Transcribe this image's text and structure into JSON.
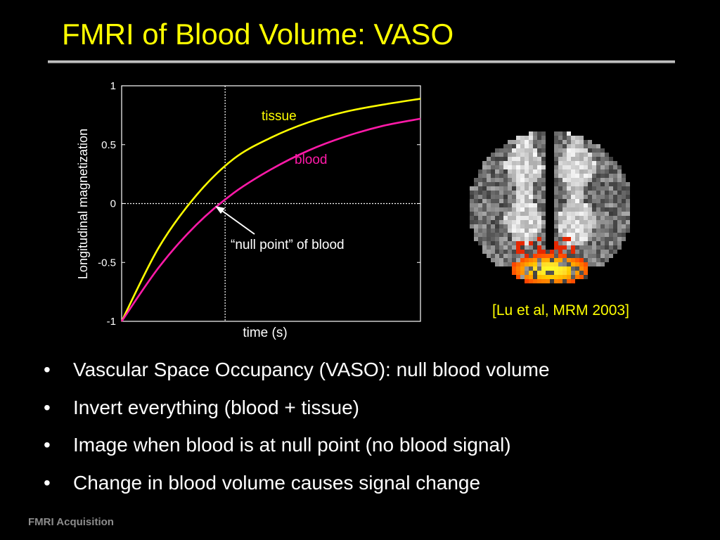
{
  "slide": {
    "title": "FMRI of Blood Volume: VASO",
    "footer": "FMRI Acquisition",
    "citation": "[Lu et al, MRM 2003]",
    "bullets": [
      "Vascular Space Occupancy (VASO): null blood volume",
      "Invert everything (blood + tissue)",
      "Image when blood is at null point (no blood signal)",
      "Change in blood volume causes signal change"
    ],
    "bullet_glyph": "•"
  },
  "chart_data": {
    "type": "line",
    "xlabel": "time (s)",
    "ylabel": "Longitudinal magnetization",
    "ylim": [
      -1,
      1
    ],
    "yticks": [
      {
        "value": 1,
        "label": "1"
      },
      {
        "value": 0.5,
        "label": "0.5"
      },
      {
        "value": 0,
        "label": "0"
      },
      {
        "value": -0.5,
        "label": "-0.5"
      },
      {
        "value": -1,
        "label": "-1"
      }
    ],
    "series": [
      {
        "name": "tissue",
        "color": "#ffff00",
        "values": [
          -1.0,
          -0.37,
          0.07,
          0.38,
          0.56,
          0.69,
          0.78,
          0.84,
          0.89
        ]
      },
      {
        "name": "blood",
        "color": "#ff1aa8",
        "values": [
          -1.0,
          -0.54,
          -0.18,
          0.09,
          0.29,
          0.45,
          0.57,
          0.66,
          0.72
        ]
      }
    ],
    "null_point_index": 2.77,
    "annotation": "“null point” of blood",
    "grid": false,
    "legend": "inline labels"
  }
}
